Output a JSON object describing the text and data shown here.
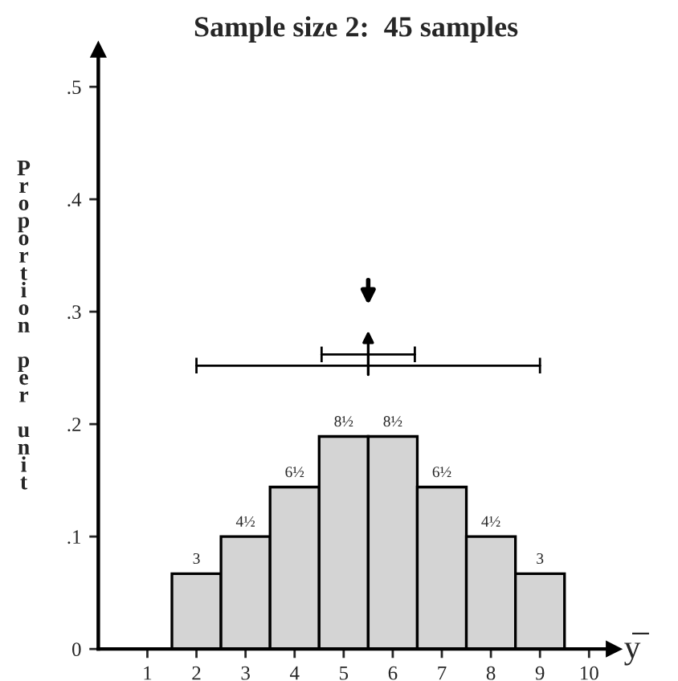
{
  "chart_data": {
    "type": "histogram",
    "title": "Sample size 2:  45 samples",
    "xlabel": "y̅",
    "ylabel": "Proportion per unit",
    "bins": [
      1.5,
      2.5,
      3.5,
      4.5,
      5.5,
      6.5,
      7.5,
      8.5,
      9.5
    ],
    "values": [
      0.067,
      0.1,
      0.144,
      0.189,
      0.189,
      0.144,
      0.1,
      0.067
    ],
    "color": "#d4d4d4",
    "annotations": [
      {
        "text": "3",
        "x": 2,
        "y": 0.067
      },
      {
        "text": "4½",
        "x": 3,
        "y": 0.1
      },
      {
        "text": "6½",
        "x": 4,
        "y": 0.144
      },
      {
        "text": "8½",
        "x": 5,
        "y": 0.189
      },
      {
        "text": "8½",
        "x": 6,
        "y": 0.189
      },
      {
        "text": "6½",
        "x": 7,
        "y": 0.144
      },
      {
        "text": "4½",
        "x": 8,
        "y": 0.1
      },
      {
        "text": "3",
        "x": 9,
        "y": 0.067
      }
    ],
    "series": [
      {
        "type": "line",
        "x": [
          2,
          9
        ],
        "values": [
          0.252,
          0.252
        ],
        "color": "#000000"
      },
      {
        "type": "line",
        "x": [
          4.55,
          6.45
        ],
        "values": [
          0.262,
          0.262
        ],
        "color": "#000000"
      }
    ],
    "xlim": [
      0,
      10.5
    ],
    "ylim": [
      0,
      0.533
    ],
    "xticks": [
      1,
      2,
      3,
      4,
      5,
      6,
      7,
      8,
      9,
      10
    ],
    "yticks": [
      0,
      {
        "value": 0.1,
        "label": ".1"
      },
      {
        "value": 0.2,
        "label": ".2"
      },
      {
        "value": 0.3,
        "label": ".3"
      },
      {
        "value": 0.4,
        "label": ".4"
      },
      {
        "value": 0.5,
        "label": ".5"
      }
    ],
    "grid": false
  }
}
